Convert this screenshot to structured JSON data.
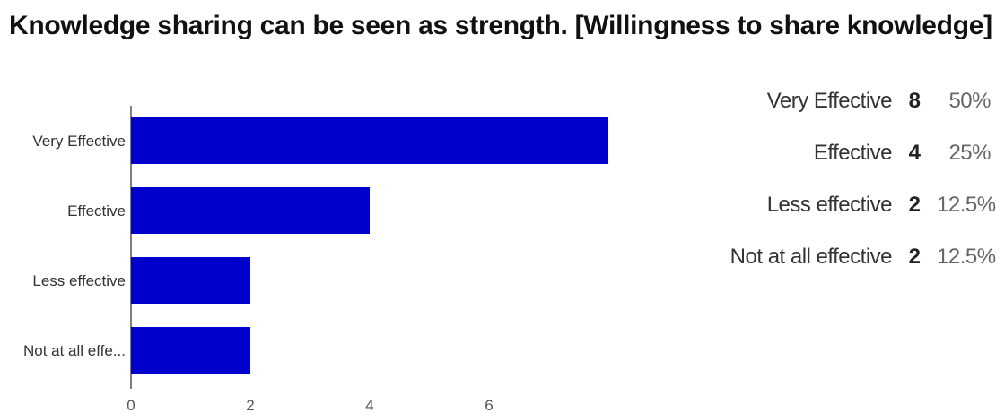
{
  "chart_data": {
    "type": "bar",
    "orientation": "horizontal",
    "title": "Knowledge sharing can be seen as strength. [Willingness to share knowledge]",
    "categories": [
      "Very Effective",
      "Effective",
      "Less effective",
      "Not at all effective"
    ],
    "category_tick_labels": [
      "Very Effective",
      "Effective",
      "Less effective",
      "Not at all effe..."
    ],
    "values": [
      8,
      4,
      2,
      2
    ],
    "x_ticks": [
      "0",
      "2",
      "4",
      "6"
    ],
    "xlim": [
      0,
      8
    ],
    "grid": false,
    "bar_color": "#0000cc"
  },
  "summary": {
    "rows": [
      {
        "label": "Very Effective",
        "count": "8",
        "percent": "50%"
      },
      {
        "label": "Effective",
        "count": "4",
        "percent": "25%"
      },
      {
        "label": "Less effective",
        "count": "2",
        "percent": "12.5%"
      },
      {
        "label": "Not at all effective",
        "count": "2",
        "percent": "12.5%"
      }
    ]
  }
}
